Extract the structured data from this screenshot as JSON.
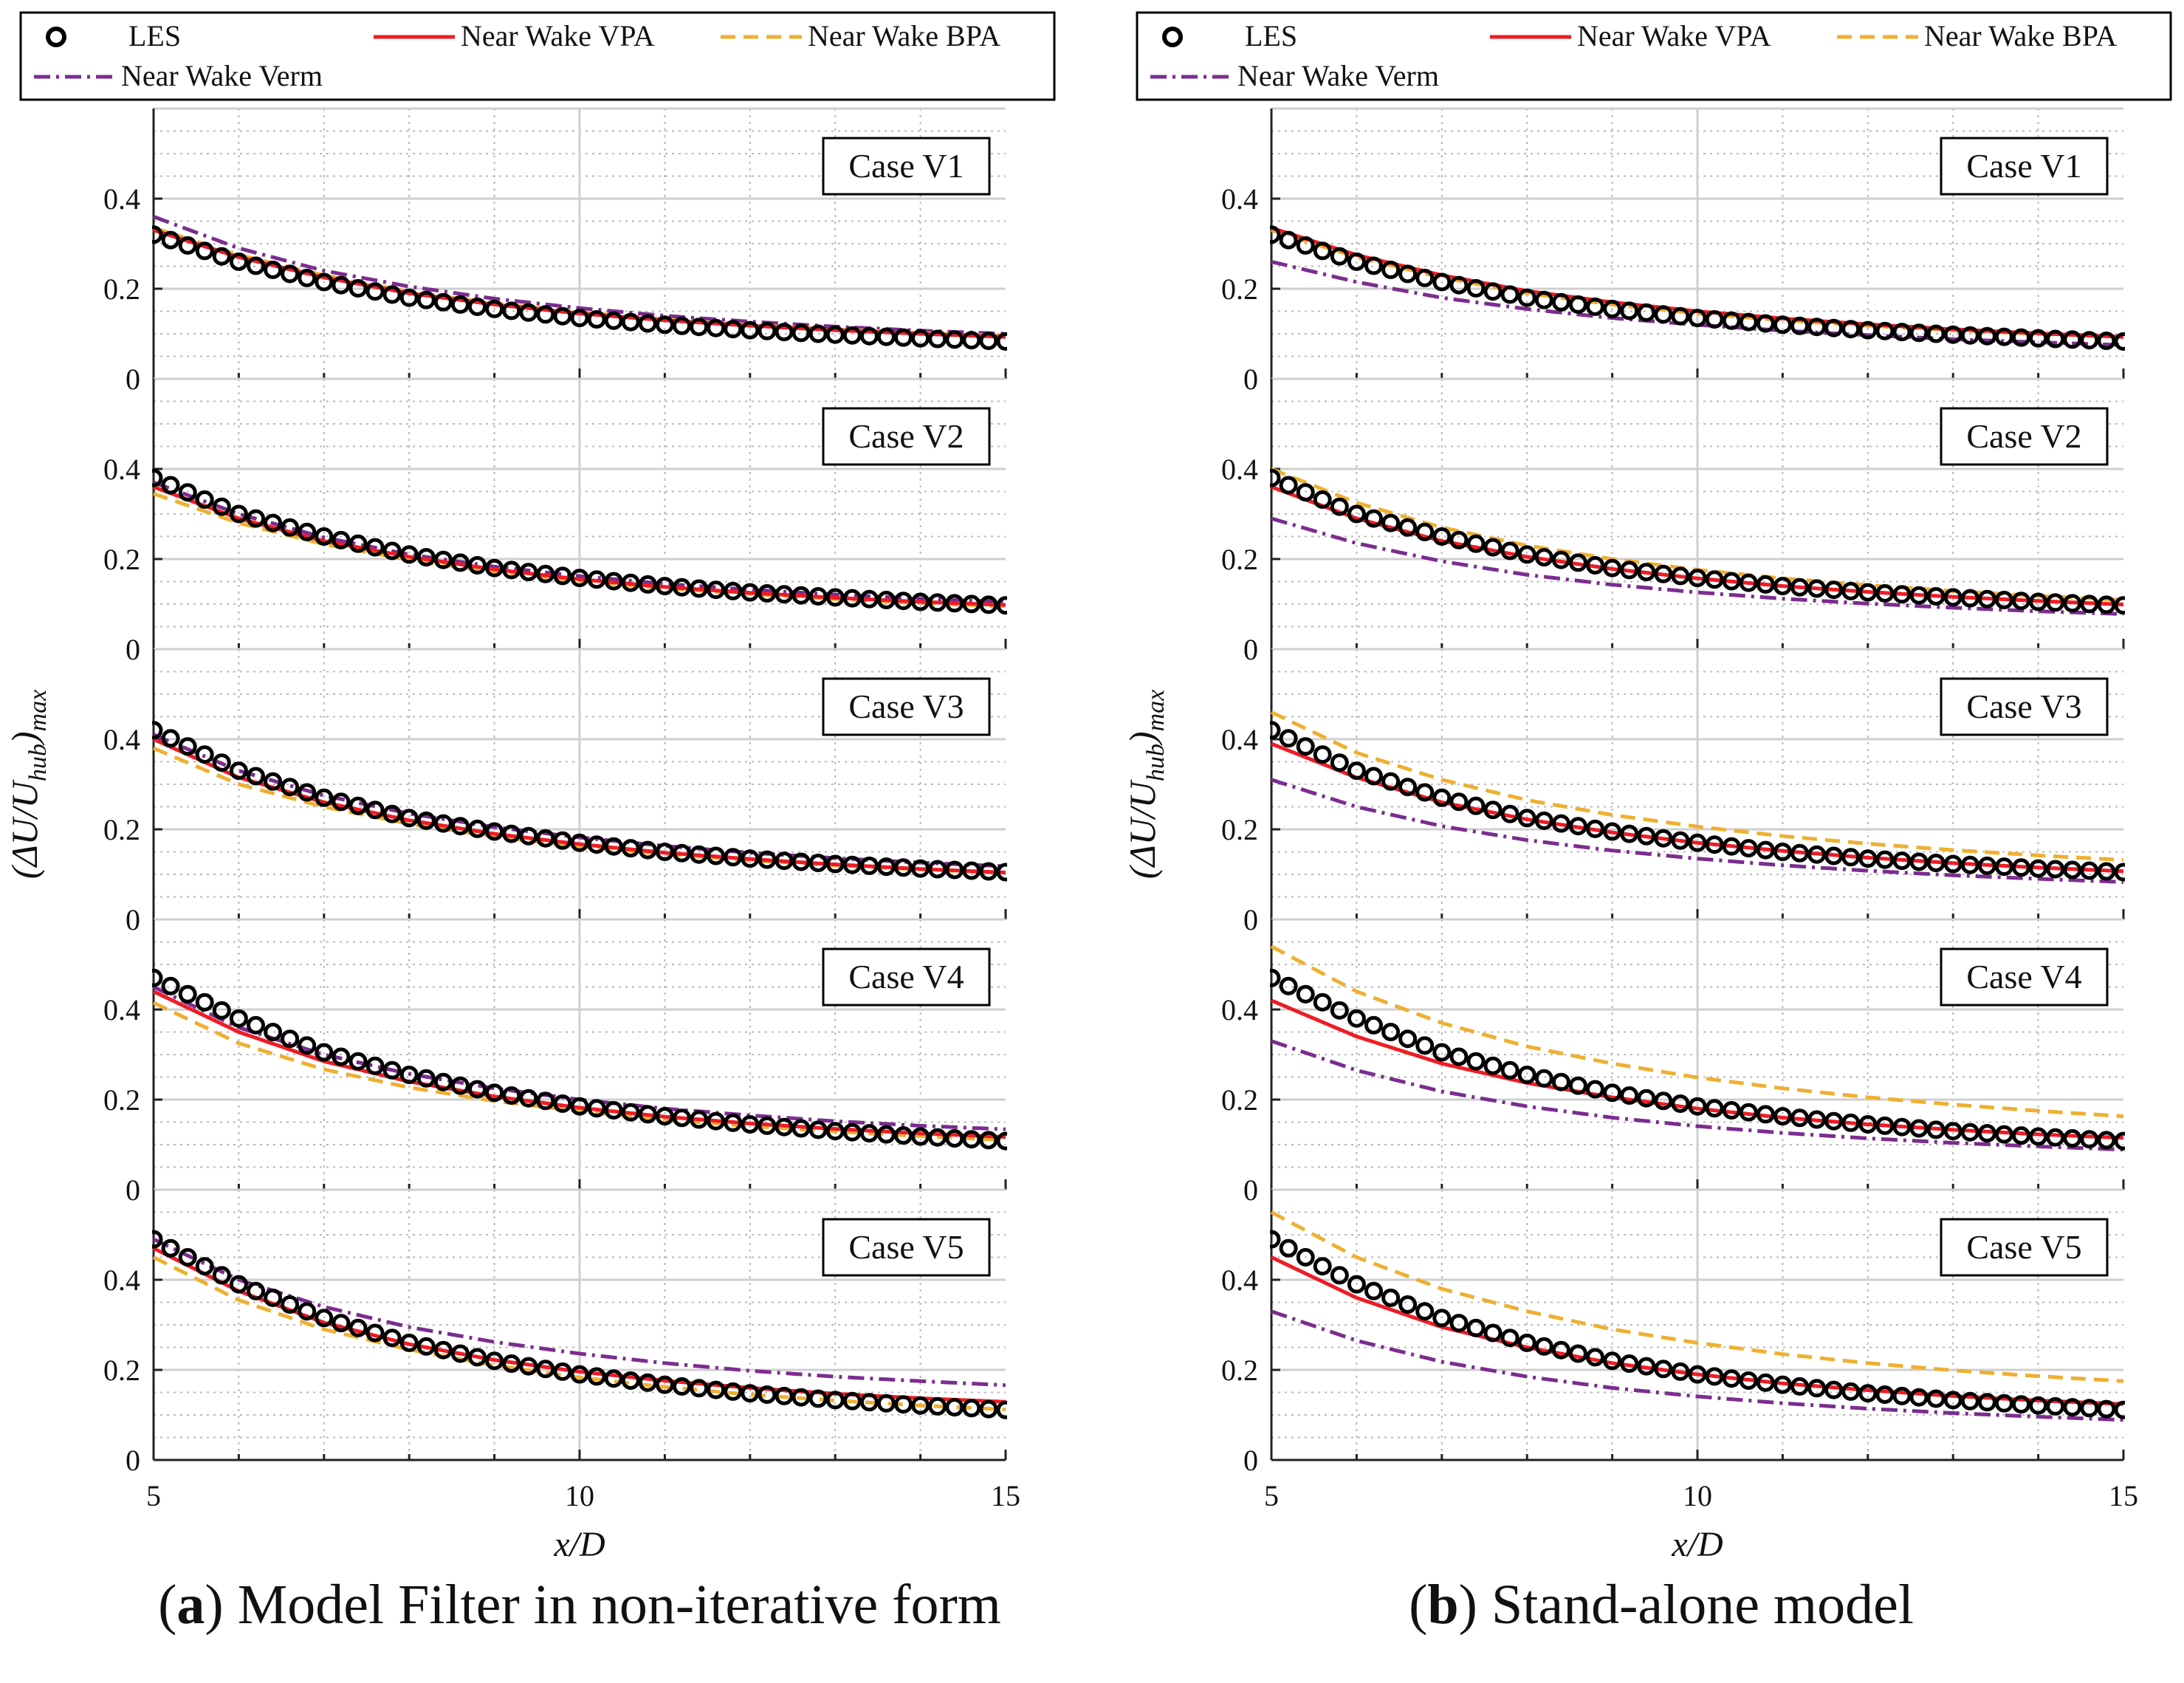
{
  "colors": {
    "les": "#000000",
    "vpa": "#ee1c25",
    "bpa": "#eeb031",
    "verm": "#7b2d8e",
    "grid_major": "#cfcfcf",
    "grid_minor": "#b8b8b8",
    "axis": "#222222"
  },
  "figure": {
    "y_axis_label": "(ΔU/U_hub)_max",
    "x_axis_label": "x/D",
    "caption_a_letter": "a",
    "caption_a_text": "Model Filter in non-iterative form",
    "caption_b_letter": "b",
    "caption_b_text": "Stand-alone model"
  },
  "chart_data": [
    {
      "type": "line",
      "title": "(a) Model Filter in non-iterative form",
      "legend": [
        "LES",
        "Near Wake VPA",
        "Near Wake BPA",
        "Near Wake Verm"
      ],
      "legend_position": "top",
      "xlabel": "x/D",
      "ylabel": "(ΔU/U_hub)_max",
      "xlim": [
        5,
        15
      ],
      "ylim": [
        0,
        0.6
      ],
      "x_ticks": [
        5,
        10,
        15
      ],
      "y_ticks": [
        0,
        0.2,
        0.4
      ],
      "grid": true,
      "x": [
        5,
        6,
        7,
        8,
        9,
        10,
        11,
        12,
        13,
        14,
        15
      ],
      "panels": [
        {
          "label": "Case V1",
          "series": [
            {
              "name": "LES",
              "values": [
                0.32,
                0.26,
                0.215,
                0.18,
                0.155,
                0.135,
                0.12,
                0.108,
                0.098,
                0.09,
                0.083
              ]
            },
            {
              "name": "Near Wake VPA",
              "values": [
                0.33,
                0.27,
                0.225,
                0.19,
                0.165,
                0.145,
                0.13,
                0.118,
                0.108,
                0.1,
                0.093
              ]
            },
            {
              "name": "Near Wake BPA",
              "values": [
                0.335,
                0.275,
                0.23,
                0.193,
                0.168,
                0.148,
                0.132,
                0.12,
                0.11,
                0.102,
                0.095
              ]
            },
            {
              "name": "Near Wake Verm",
              "values": [
                0.36,
                0.29,
                0.24,
                0.205,
                0.178,
                0.157,
                0.14,
                0.127,
                0.116,
                0.107,
                0.1
              ]
            }
          ]
        },
        {
          "label": "Case V2",
          "series": [
            {
              "name": "LES",
              "values": [
                0.38,
                0.3,
                0.25,
                0.21,
                0.18,
                0.158,
                0.14,
                0.126,
                0.115,
                0.105,
                0.097
              ]
            },
            {
              "name": "Near Wake VPA",
              "values": [
                0.36,
                0.29,
                0.24,
                0.205,
                0.177,
                0.155,
                0.138,
                0.125,
                0.114,
                0.105,
                0.098
              ]
            },
            {
              "name": "Near Wake BPA",
              "values": [
                0.345,
                0.28,
                0.233,
                0.198,
                0.172,
                0.151,
                0.135,
                0.122,
                0.111,
                0.102,
                0.095
              ]
            },
            {
              "name": "Near Wake Verm",
              "values": [
                0.37,
                0.3,
                0.248,
                0.21,
                0.183,
                0.162,
                0.145,
                0.132,
                0.121,
                0.112,
                0.105
              ]
            }
          ]
        },
        {
          "label": "Case V3",
          "series": [
            {
              "name": "LES",
              "values": [
                0.42,
                0.33,
                0.27,
                0.225,
                0.195,
                0.17,
                0.15,
                0.135,
                0.123,
                0.113,
                0.105
              ]
            },
            {
              "name": "Near Wake VPA",
              "values": [
                0.4,
                0.315,
                0.26,
                0.22,
                0.19,
                0.167,
                0.148,
                0.134,
                0.122,
                0.112,
                0.104
              ]
            },
            {
              "name": "Near Wake BPA",
              "values": [
                0.38,
                0.3,
                0.25,
                0.212,
                0.184,
                0.162,
                0.145,
                0.131,
                0.12,
                0.111,
                0.103
              ]
            },
            {
              "name": "Near Wake Verm",
              "values": [
                0.41,
                0.33,
                0.275,
                0.235,
                0.205,
                0.182,
                0.163,
                0.148,
                0.136,
                0.126,
                0.118
              ]
            }
          ]
        },
        {
          "label": "Case V4",
          "series": [
            {
              "name": "LES",
              "values": [
                0.47,
                0.38,
                0.305,
                0.255,
                0.215,
                0.185,
                0.163,
                0.145,
                0.13,
                0.118,
                0.108
              ]
            },
            {
              "name": "Near Wake VPA",
              "values": [
                0.44,
                0.35,
                0.285,
                0.24,
                0.207,
                0.182,
                0.162,
                0.147,
                0.135,
                0.125,
                0.117
              ]
            },
            {
              "name": "Near Wake BPA",
              "values": [
                0.415,
                0.325,
                0.267,
                0.227,
                0.197,
                0.174,
                0.156,
                0.141,
                0.129,
                0.119,
                0.11
              ]
            },
            {
              "name": "Near Wake Verm",
              "values": [
                0.45,
                0.36,
                0.3,
                0.257,
                0.225,
                0.2,
                0.18,
                0.165,
                0.152,
                0.142,
                0.134
              ]
            }
          ]
        },
        {
          "label": "Case V5",
          "series": [
            {
              "name": "LES",
              "values": [
                0.49,
                0.39,
                0.315,
                0.26,
                0.22,
                0.19,
                0.167,
                0.148,
                0.133,
                0.121,
                0.111
              ]
            },
            {
              "name": "Near Wake VPA",
              "values": [
                0.47,
                0.375,
                0.305,
                0.257,
                0.222,
                0.196,
                0.176,
                0.16,
                0.147,
                0.137,
                0.129
              ]
            },
            {
              "name": "Near Wake BPA",
              "values": [
                0.45,
                0.355,
                0.29,
                0.245,
                0.21,
                0.183,
                0.162,
                0.145,
                0.132,
                0.121,
                0.112
              ]
            },
            {
              "name": "Near Wake Verm",
              "values": [
                0.49,
                0.4,
                0.34,
                0.295,
                0.262,
                0.236,
                0.215,
                0.198,
                0.185,
                0.175,
                0.166
              ]
            }
          ]
        }
      ]
    },
    {
      "type": "line",
      "title": "(b) Stand-alone model",
      "legend": [
        "LES",
        "Near Wake VPA",
        "Near Wake BPA",
        "Near Wake Verm"
      ],
      "legend_position": "top",
      "xlabel": "x/D",
      "ylabel": "(ΔU/U_hub)_max",
      "xlim": [
        5,
        15
      ],
      "ylim": [
        0,
        0.6
      ],
      "x_ticks": [
        5,
        10,
        15
      ],
      "y_ticks": [
        0,
        0.2,
        0.4
      ],
      "grid": true,
      "x": [
        5,
        6,
        7,
        8,
        9,
        10,
        11,
        12,
        13,
        14,
        15
      ],
      "panels": [
        {
          "label": "Case V1",
          "series": [
            {
              "name": "LES",
              "values": [
                0.32,
                0.26,
                0.215,
                0.18,
                0.155,
                0.135,
                0.12,
                0.108,
                0.098,
                0.09,
                0.083
              ]
            },
            {
              "name": "Near Wake VPA",
              "values": [
                0.335,
                0.275,
                0.23,
                0.195,
                0.17,
                0.15,
                0.134,
                0.121,
                0.11,
                0.101,
                0.093
              ]
            },
            {
              "name": "Near Wake BPA",
              "values": [
                0.33,
                0.27,
                0.225,
                0.19,
                0.165,
                0.145,
                0.13,
                0.118,
                0.108,
                0.1,
                0.093
              ]
            },
            {
              "name": "Near Wake Verm",
              "values": [
                0.26,
                0.215,
                0.18,
                0.155,
                0.135,
                0.12,
                0.107,
                0.097,
                0.088,
                0.081,
                0.075
              ]
            }
          ]
        },
        {
          "label": "Case V2",
          "series": [
            {
              "name": "LES",
              "values": [
                0.38,
                0.3,
                0.25,
                0.21,
                0.18,
                0.158,
                0.14,
                0.126,
                0.115,
                0.105,
                0.097
              ]
            },
            {
              "name": "Near Wake VPA",
              "values": [
                0.36,
                0.29,
                0.24,
                0.205,
                0.178,
                0.157,
                0.14,
                0.127,
                0.116,
                0.107,
                0.099
              ]
            },
            {
              "name": "Near Wake BPA",
              "values": [
                0.4,
                0.325,
                0.27,
                0.23,
                0.2,
                0.176,
                0.157,
                0.142,
                0.129,
                0.118,
                0.109
              ]
            },
            {
              "name": "Near Wake Verm",
              "values": [
                0.29,
                0.235,
                0.195,
                0.165,
                0.143,
                0.126,
                0.112,
                0.101,
                0.092,
                0.084,
                0.078
              ]
            }
          ]
        },
        {
          "label": "Case V3",
          "series": [
            {
              "name": "LES",
              "values": [
                0.42,
                0.33,
                0.27,
                0.225,
                0.195,
                0.17,
                0.15,
                0.135,
                0.123,
                0.113,
                0.105
              ]
            },
            {
              "name": "Near Wake VPA",
              "values": [
                0.39,
                0.315,
                0.26,
                0.222,
                0.193,
                0.17,
                0.152,
                0.137,
                0.125,
                0.115,
                0.107
              ]
            },
            {
              "name": "Near Wake BPA",
              "values": [
                0.46,
                0.37,
                0.31,
                0.265,
                0.232,
                0.206,
                0.185,
                0.168,
                0.154,
                0.142,
                0.132
              ]
            },
            {
              "name": "Near Wake Verm",
              "values": [
                0.31,
                0.25,
                0.207,
                0.176,
                0.153,
                0.135,
                0.12,
                0.108,
                0.098,
                0.09,
                0.083
              ]
            }
          ]
        },
        {
          "label": "Case V4",
          "series": [
            {
              "name": "LES",
              "values": [
                0.47,
                0.38,
                0.305,
                0.255,
                0.215,
                0.185,
                0.163,
                0.145,
                0.13,
                0.118,
                0.108
              ]
            },
            {
              "name": "Near Wake VPA",
              "values": [
                0.42,
                0.34,
                0.28,
                0.237,
                0.205,
                0.18,
                0.16,
                0.145,
                0.133,
                0.123,
                0.115
              ]
            },
            {
              "name": "Near Wake BPA",
              "values": [
                0.54,
                0.44,
                0.37,
                0.318,
                0.28,
                0.249,
                0.225,
                0.205,
                0.189,
                0.175,
                0.163
              ]
            },
            {
              "name": "Near Wake Verm",
              "values": [
                0.33,
                0.265,
                0.218,
                0.185,
                0.16,
                0.141,
                0.126,
                0.114,
                0.104,
                0.096,
                0.089
              ]
            }
          ]
        },
        {
          "label": "Case V5",
          "series": [
            {
              "name": "LES",
              "values": [
                0.49,
                0.39,
                0.315,
                0.26,
                0.22,
                0.19,
                0.167,
                0.148,
                0.133,
                0.121,
                0.111
              ]
            },
            {
              "name": "Near Wake VPA",
              "values": [
                0.45,
                0.36,
                0.295,
                0.25,
                0.215,
                0.19,
                0.17,
                0.155,
                0.142,
                0.132,
                0.124
              ]
            },
            {
              "name": "Near Wake BPA",
              "values": [
                0.55,
                0.45,
                0.38,
                0.33,
                0.29,
                0.26,
                0.235,
                0.215,
                0.199,
                0.186,
                0.175
              ]
            },
            {
              "name": "Near Wake Verm",
              "values": [
                0.33,
                0.265,
                0.218,
                0.185,
                0.16,
                0.141,
                0.126,
                0.114,
                0.104,
                0.096,
                0.089
              ]
            }
          ]
        }
      ]
    }
  ]
}
